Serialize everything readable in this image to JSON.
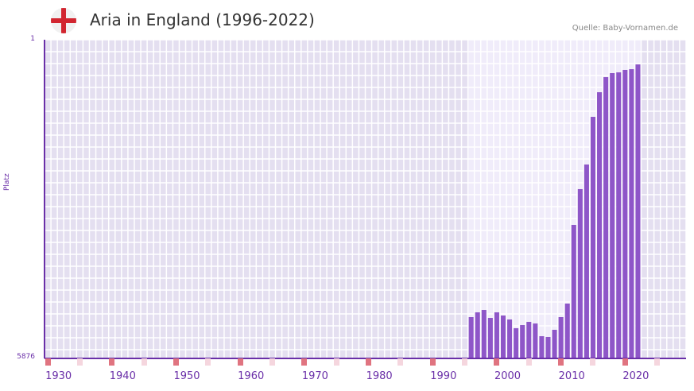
{
  "header": {
    "title": "Aria in England (1996-2022)",
    "flag_icon": "england-flag-icon",
    "source": "Quelle: Baby-Vornamen.de"
  },
  "axes": {
    "ylabel": "Platz",
    "ytick_top": "1",
    "ytick_bottom": "5876",
    "xticks": [
      "1930",
      "1940",
      "1950",
      "1960",
      "1970",
      "1980",
      "1990",
      "2000",
      "2010",
      "2020"
    ]
  },
  "colors": {
    "bar": "#8e56c8",
    "axis": "#6a2fa8",
    "bg_out": "#e4dff0",
    "bg_in": "#f0ecfa",
    "mark_strong": "#e07480",
    "mark_light": "#f5d6de"
  },
  "chart_data": {
    "type": "bar",
    "title": "Aria in England (1996-2022)",
    "xlabel": "",
    "ylabel": "Platz",
    "y_inverted": true,
    "ylim": [
      5876,
      1
    ],
    "xlim": [
      1929,
      2029
    ],
    "x": [
      1995,
      1996,
      1997,
      1998,
      1999,
      2000,
      2001,
      2002,
      2003,
      2004,
      2005,
      2006,
      2007,
      2008,
      2009,
      2010,
      2011,
      2012,
      2013,
      2014,
      2015,
      2016,
      2017,
      2018,
      2019,
      2020,
      2021
    ],
    "values": [
      5127,
      5039,
      4995,
      5142,
      5039,
      5098,
      5171,
      5333,
      5274,
      5215,
      5245,
      5480,
      5494,
      5362,
      5127,
      4877,
      3423,
      2762,
      2307,
      1426,
      971,
      692,
      618,
      604,
      559,
      545,
      457
    ],
    "annotations": [
      "Quelle: Baby-Vornamen.de"
    ],
    "grid": true
  }
}
